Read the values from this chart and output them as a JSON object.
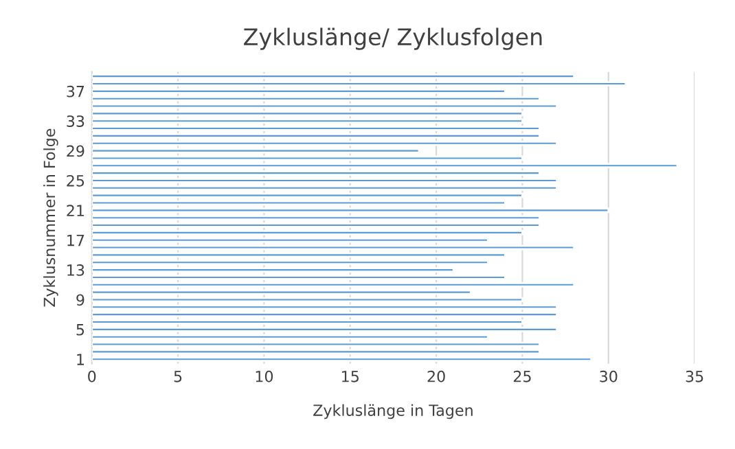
{
  "chart_data": {
    "type": "bar",
    "orientation": "horizontal",
    "title": "Zykluslänge/ Zyklusfolgen",
    "xlabel": "Zykluslänge in Tagen",
    "ylabel": "Zyklusnummer in Folge",
    "categories": [
      null,
      null,
      "37",
      null,
      null,
      null,
      "33",
      null,
      null,
      null,
      "29",
      null,
      null,
      null,
      "25",
      null,
      null,
      null,
      "21",
      null,
      null,
      null,
      "17",
      null,
      null,
      null,
      "13",
      null,
      null,
      null,
      "9",
      null,
      null,
      null,
      "5",
      null,
      null,
      null,
      "1"
    ],
    "values": [
      28,
      31,
      24,
      26,
      27,
      25,
      25,
      26,
      26,
      27,
      19,
      25,
      34,
      26,
      27,
      27,
      25,
      24,
      30,
      26,
      26,
      25,
      23,
      28,
      24,
      23,
      21,
      24,
      28,
      22,
      25,
      27,
      27,
      25,
      27,
      23,
      26,
      26,
      29
    ],
    "color": "#5b9bd5",
    "xlim": [
      0,
      35
    ],
    "xticks": [
      0,
      5,
      10,
      15,
      20,
      25,
      30,
      35
    ],
    "grid": "x",
    "legend": false
  }
}
